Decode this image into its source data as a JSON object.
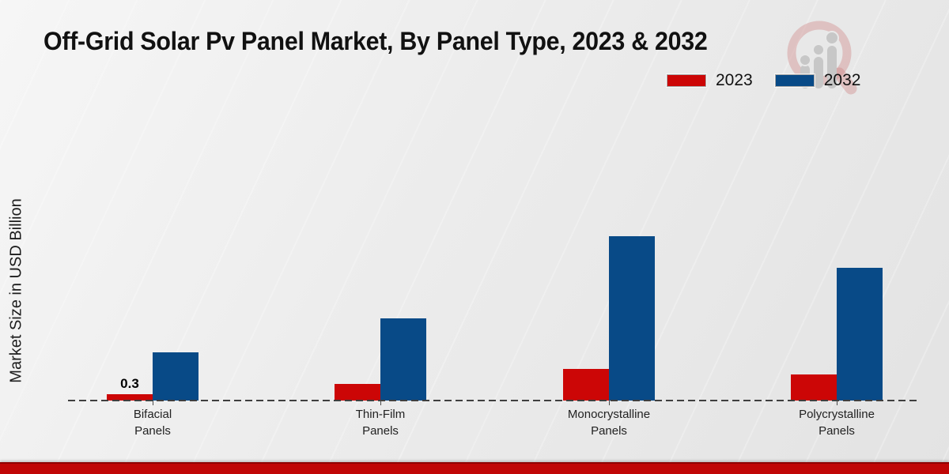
{
  "title": "Off-Grid Solar Pv Panel Market, By Panel Type, 2023 & 2032",
  "ylabel": "Market Size in USD Billion",
  "colors": {
    "series_2023": "#cc0606",
    "series_2032": "#084a87",
    "footer_bar": "#c00606",
    "baseline": "#3f3f3f",
    "background": "#ececec"
  },
  "legend": {
    "position": "top-right",
    "items": [
      "2023",
      "2032"
    ]
  },
  "chart_data": {
    "type": "bar",
    "title": "Off-Grid Solar Pv Panel Market, By Panel Type, 2023 & 2032",
    "xlabel": "",
    "ylabel": "Market Size in USD Billion",
    "categories": [
      "Bifacial Panels",
      "Thin-Film Panels",
      "Monocrystalline Panels",
      "Polycrystalline Panels"
    ],
    "category_lines": [
      [
        "Bifacial",
        "Panels"
      ],
      [
        "Thin-Film",
        "Panels"
      ],
      [
        "Monocrystalline",
        "Panels"
      ],
      [
        "Polycrystalline",
        "Panels"
      ]
    ],
    "series": [
      {
        "name": "2023",
        "color": "#cc0606",
        "values": [
          0.3,
          0.8,
          1.5,
          1.25
        ]
      },
      {
        "name": "2032",
        "color": "#084a87",
        "values": [
          2.3,
          3.9,
          7.8,
          6.3
        ]
      }
    ],
    "annotations": [
      {
        "text": "0.3",
        "category_index": 0,
        "series_index": 0
      }
    ],
    "ylim": [
      0,
      8.5
    ],
    "grid": false,
    "axis_style": "dashed-baseline-only",
    "legend_position": "top-right"
  }
}
